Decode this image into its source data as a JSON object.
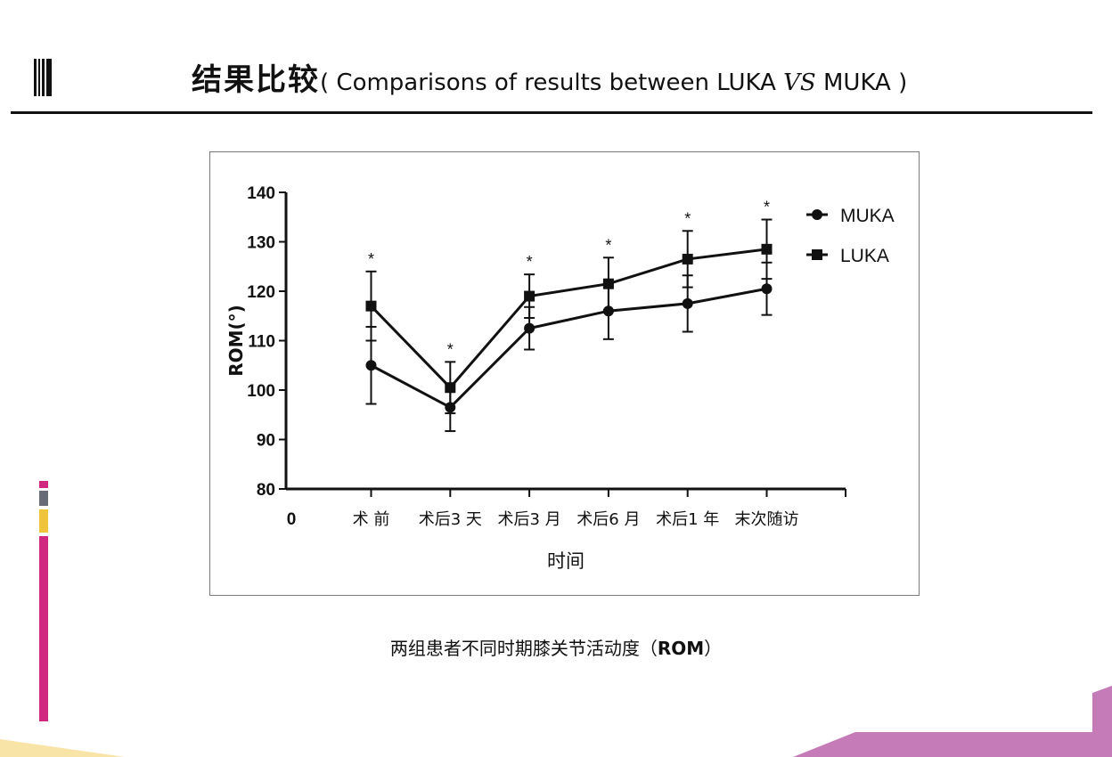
{
  "slide": {
    "title_cn": "结果比较",
    "title_paren_open": "( Comparisons of results between LUKA ",
    "title_vs": "VS",
    "title_paren_close": " MUKA  )",
    "caption_cn": "两组患者不同时期膝关节活动度（",
    "caption_rom": "ROM",
    "caption_close": "）"
  },
  "colors": {
    "text": "#111111",
    "accent_magenta": "#d0287e",
    "accent_gray": "#666b77",
    "accent_yellow": "#f0c43a",
    "accent_purple": "#c47bb8"
  },
  "chart_data": {
    "type": "line",
    "xlabel": "时间",
    "ylabel": "ROM(°)",
    "x_origin_label": "0",
    "categories": [
      "术 前",
      "术后3 天",
      "术后3 月",
      "术后6 月",
      "术后1 年",
      "末次随访"
    ],
    "ylim": [
      80,
      140
    ],
    "yticks": [
      80,
      90,
      100,
      110,
      120,
      130,
      140
    ],
    "legend_position": "top-right",
    "grid": false,
    "series": [
      {
        "name": "MUKA",
        "marker": "circle",
        "values": [
          105,
          96.5,
          112.5,
          116,
          117.5,
          120.5
        ],
        "err": [
          7.8,
          4.8,
          4.3,
          5.7,
          5.7,
          5.3
        ]
      },
      {
        "name": "LUKA",
        "marker": "square",
        "values": [
          117,
          100.5,
          119,
          121.5,
          126.5,
          128.5
        ],
        "err": [
          7,
          5.2,
          4.4,
          5.3,
          5.7,
          6
        ]
      }
    ],
    "significance": [
      "*",
      "*",
      "*",
      "*",
      "*",
      "*"
    ]
  }
}
